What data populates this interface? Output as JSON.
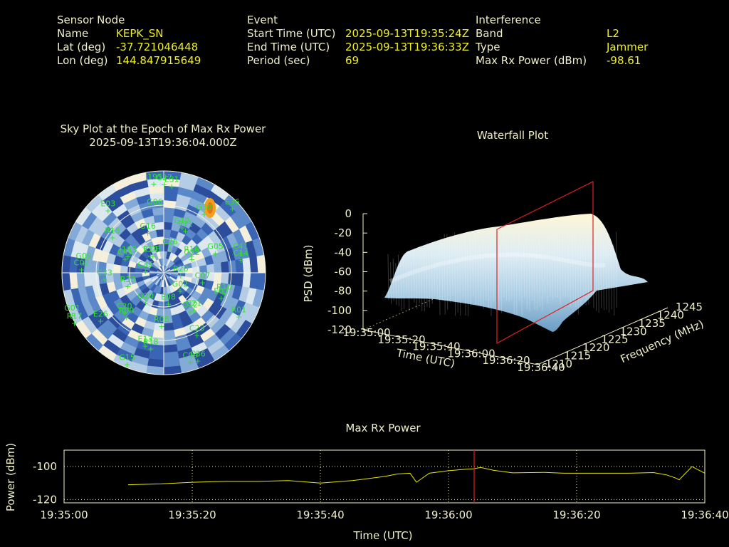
{
  "header": {
    "sensor": {
      "heading": "Sensor Node",
      "name_label": "Name",
      "name": "KEPK_SN",
      "lat_label": "Lat (deg)",
      "lat": "-37.721046448",
      "lon_label": "Lon (deg)",
      "lon": "144.847915649"
    },
    "event": {
      "heading": "Event",
      "start_label": "Start Time (UTC)",
      "start": "2025-09-13T19:35:24Z",
      "end_label": "End Time (UTC)",
      "end": "2025-09-13T19:36:33Z",
      "period_label": "Period (sec)",
      "period": "69"
    },
    "interference": {
      "heading": "Interference",
      "band_label": "Band",
      "band": "L2",
      "type_label": "Type",
      "type": "Jammer",
      "maxrx_label": "Max Rx Power (dBm)",
      "maxrx": "-98.61"
    }
  },
  "colors": {
    "label": "#f0f0c8",
    "value": "#f0f020",
    "sat": "#30e030",
    "marker": "#e02020",
    "trace": "#e8e800",
    "axis": "#f0f0c8"
  },
  "chart_data": [
    {
      "type": "scatter",
      "title": "Sky Plot at the Epoch of Max Rx Power",
      "subtitle": "2025-09-13T19:36:04.000Z",
      "satellites": [
        "J195",
        "C20",
        "E31",
        "C12",
        "G09",
        "G22",
        "E13",
        "C08",
        "E07",
        "G01",
        "E11",
        "C09",
        "J193",
        "C14",
        "G20",
        "G06",
        "G02",
        "C33",
        "E36",
        "R08",
        "E03",
        "C07",
        "E26",
        "C26",
        "C23",
        "C35",
        "G05",
        "G15",
        "G16",
        "R01",
        "R33",
        "G30",
        "E08",
        "R15",
        "R20",
        "R09",
        "G27",
        "C21",
        "C02",
        "R16",
        "R18",
        "E14",
        "R10",
        "R17",
        "G12",
        "C36",
        "C45",
        "C41"
      ]
    },
    {
      "type": "area",
      "title": "Waterfall Plot",
      "zlabel": "PSD (dBm)",
      "xlabel": "Time (UTC)",
      "ylabel": "Frequency (MHz)",
      "z_ticks": [
        "0",
        "-20",
        "-40",
        "-60",
        "-80",
        "-100",
        "-120"
      ],
      "x_ticks": [
        "19:35:00",
        "19:35:20",
        "19:35:40",
        "19:36:00",
        "19:36:20",
        "19:36:40"
      ],
      "y_ticks": [
        "1210",
        "1215",
        "1220",
        "1225",
        "1230",
        "1235",
        "1240",
        "1245"
      ],
      "zlim": [
        -120,
        0
      ],
      "marker_time": "19:36:04"
    },
    {
      "type": "line",
      "title": "Max Rx Power",
      "xlabel": "Time (UTC)",
      "ylabel": "Power (dBm)",
      "x_ticks": [
        "19:35:00",
        "19:35:20",
        "19:35:40",
        "19:36:00",
        "19:36:20",
        "19:36:40"
      ],
      "y_ticks": [
        "-100",
        "-120"
      ],
      "xlim_sec": [
        0,
        100
      ],
      "ylim": [
        -122,
        -90
      ],
      "marker_sec": 64,
      "x_sec": [
        10,
        15,
        20,
        25,
        30,
        35,
        40,
        45,
        50,
        52,
        54,
        55,
        57,
        60,
        62,
        64,
        65,
        67,
        70,
        75,
        78,
        80,
        82,
        84,
        85,
        86,
        88,
        92,
        94,
        95.5,
        96,
        97,
        98,
        100
      ],
      "power_dbm": [
        -111,
        -110.5,
        -109.5,
        -109,
        -109,
        -108.5,
        -110,
        -108.5,
        -106,
        -104.5,
        -104,
        -109.5,
        -104,
        -102.5,
        -101.8,
        -101.3,
        -100.5,
        -102.2,
        -103.8,
        -103.5,
        -104,
        -104,
        -104,
        -104,
        -104,
        -104,
        -104,
        -103.6,
        -105,
        -107,
        -108,
        -104,
        -100,
        -104
      ]
    }
  ]
}
